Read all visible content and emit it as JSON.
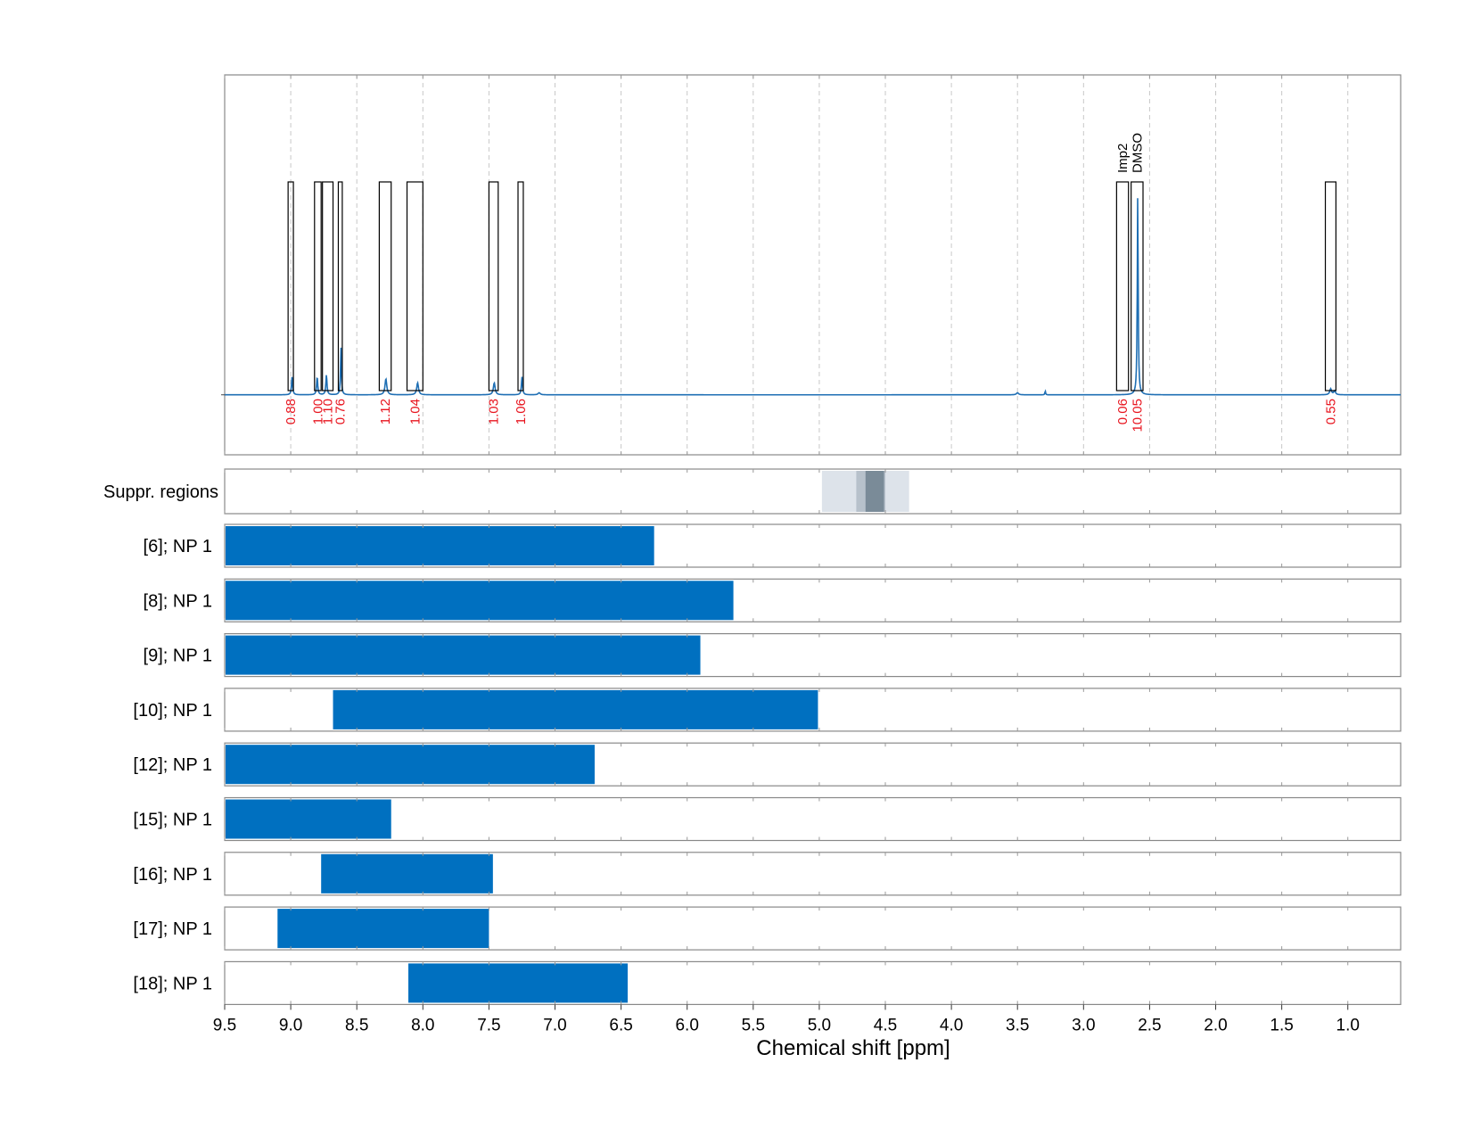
{
  "chart_data": {
    "type": "nmr-spectrum",
    "xlabel": "Chemical shift [ppm]",
    "xlim": [
      9.5,
      0.6
    ],
    "x_ticks": [
      9.5,
      9.0,
      8.5,
      8.0,
      7.5,
      7.0,
      6.5,
      6.0,
      5.5,
      5.0,
      4.5,
      4.0,
      3.5,
      3.0,
      2.5,
      2.0,
      1.5,
      1.0
    ],
    "x_tick_labels": [
      "9.5",
      "9.0",
      "8.5",
      "8.0",
      "7.5",
      "7.0",
      "6.5",
      "6.0",
      "5.5",
      "5.0",
      "4.5",
      "4.0",
      "3.5",
      "3.0",
      "2.5",
      "2.0",
      "1.5",
      "1.0"
    ],
    "grid": true,
    "spectrum": {
      "color": "#1f6fb4",
      "baseline": 0.0,
      "ylim": [
        -0.3,
        1.6
      ],
      "peaks": [
        {
          "ppm": 8.99,
          "height": 0.09,
          "width": 0.005
        },
        {
          "ppm": 8.8,
          "height": 0.09,
          "width": 0.005
        },
        {
          "ppm": 8.73,
          "height": 0.1,
          "width": 0.005
        },
        {
          "ppm": 8.62,
          "height": 0.24,
          "width": 0.004
        },
        {
          "ppm": 8.28,
          "height": 0.08,
          "width": 0.008
        },
        {
          "ppm": 8.04,
          "height": 0.06,
          "width": 0.008
        },
        {
          "ppm": 7.46,
          "height": 0.06,
          "width": 0.008
        },
        {
          "ppm": 7.25,
          "height": 0.09,
          "width": 0.005
        },
        {
          "ppm": 7.12,
          "height": 0.01,
          "width": 0.01
        },
        {
          "ppm": 3.5,
          "height": 0.01,
          "width": 0.01
        },
        {
          "ppm": 3.29,
          "height": 0.02,
          "width": 0.003
        },
        {
          "ppm": 2.59,
          "height": 1.0,
          "width": 0.004
        },
        {
          "ppm": 1.13,
          "height": 0.03,
          "width": 0.008
        },
        {
          "ppm": 1.1,
          "height": 0.02,
          "width": 0.008
        }
      ]
    },
    "integration_regions": [
      {
        "from": 9.02,
        "to": 8.98,
        "value": "0.88",
        "label": ""
      },
      {
        "from": 8.82,
        "to": 8.77,
        "value": "1.00",
        "label": ""
      },
      {
        "from": 8.76,
        "to": 8.68,
        "value": "1.10",
        "label": ""
      },
      {
        "from": 8.64,
        "to": 8.61,
        "value": "0.76",
        "label": ""
      },
      {
        "from": 8.33,
        "to": 8.24,
        "value": "1.12",
        "label": ""
      },
      {
        "from": 8.12,
        "to": 8.0,
        "value": "1.04",
        "label": ""
      },
      {
        "from": 7.5,
        "to": 7.43,
        "value": "1.03",
        "label": ""
      },
      {
        "from": 7.28,
        "to": 7.24,
        "value": "1.06",
        "label": ""
      },
      {
        "from": 2.75,
        "to": 2.66,
        "value": "0.06",
        "label": "Imp2"
      },
      {
        "from": 2.64,
        "to": 2.55,
        "value": "10.05",
        "label": "DMSO"
      },
      {
        "from": 1.17,
        "to": 1.09,
        "value": "0.55",
        "label": ""
      }
    ],
    "suppression": {
      "label": "Suppr. regions",
      "bands": [
        {
          "from": 4.98,
          "to": 4.32,
          "shade": "#dde3ea"
        },
        {
          "from": 4.72,
          "to": 4.5,
          "shade": "#b7c1cb"
        },
        {
          "from": 4.65,
          "to": 4.51,
          "shade": "#7a8b98"
        }
      ]
    },
    "range_rows": {
      "color": "#0070c0",
      "rows": [
        {
          "label": "[6]; NP 1",
          "from": 9.5,
          "to": 6.25
        },
        {
          "label": "[8]; NP 1",
          "from": 9.5,
          "to": 5.65
        },
        {
          "label": "[9]; NP 1",
          "from": 9.5,
          "to": 5.9
        },
        {
          "label": "[10]; NP 1",
          "from": 8.68,
          "to": 5.01
        },
        {
          "label": "[12]; NP 1",
          "from": 9.5,
          "to": 6.7
        },
        {
          "label": "[15]; NP 1",
          "from": 9.5,
          "to": 8.24
        },
        {
          "label": "[16]; NP 1",
          "from": 8.77,
          "to": 7.47
        },
        {
          "label": "[17]; NP 1",
          "from": 9.1,
          "to": 7.5
        },
        {
          "label": "[18]; NP 1",
          "from": 8.11,
          "to": 6.45
        }
      ]
    }
  }
}
